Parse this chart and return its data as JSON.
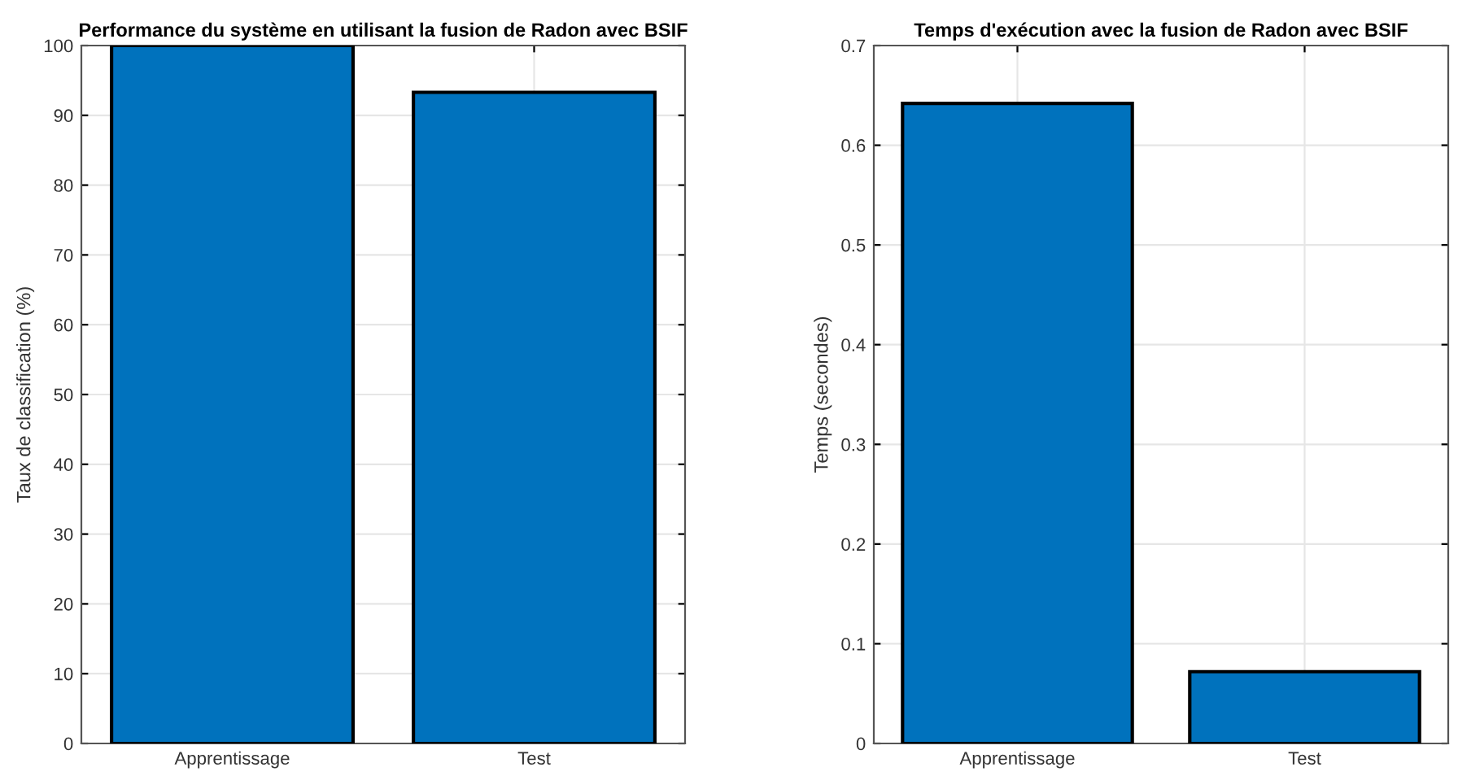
{
  "chart_data": [
    {
      "type": "bar",
      "title": "Performance du système en utilisant la fusion de Radon avec BSIF",
      "ylabel": "Taux de classification (%)",
      "categories": [
        "Apprentissage",
        "Test"
      ],
      "values": [
        100,
        93.3
      ],
      "color": "#0072bd",
      "ylim": [
        0,
        100
      ],
      "yticks": [
        0,
        10,
        20,
        30,
        40,
        50,
        60,
        70,
        80,
        90,
        100
      ],
      "grid": true
    },
    {
      "type": "bar",
      "title": "Temps d'exécution avec la fusion de Radon avec BSIF",
      "ylabel": "Temps (secondes)",
      "categories": [
        "Apprentissage",
        "Test"
      ],
      "values": [
        0.642,
        0.072
      ],
      "color": "#0072bd",
      "ylim": [
        0,
        0.7
      ],
      "yticks": [
        0,
        0.1,
        0.2,
        0.3,
        0.4,
        0.5,
        0.6,
        0.7
      ],
      "grid": true
    }
  ]
}
